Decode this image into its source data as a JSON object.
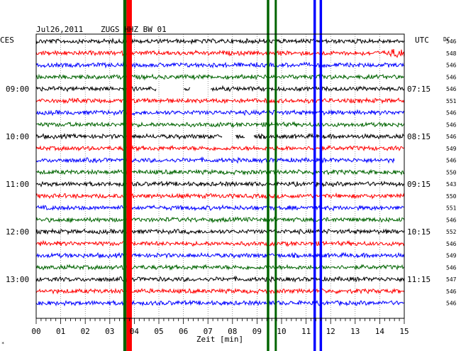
{
  "header": {
    "date": "Jul26,2011",
    "station": "ZUGS HHZ BW 01",
    "left_tz": "CES",
    "right_tz": "UTC",
    "dc_label": "DC"
  },
  "colors": {
    "trace_cycle": [
      "#000000",
      "#ff0000",
      "#0000ff",
      "#006400"
    ],
    "frame": "#000000",
    "grid": "#000000"
  },
  "chart_data": {
    "type": "line",
    "title": "Jul26,2011   ZUGS HHZ BW 01",
    "xlabel": "Zeit [min]",
    "ylabel": "",
    "x_range": [
      0,
      15
    ],
    "x_ticks": [
      "00",
      "01",
      "02",
      "03",
      "04",
      "05",
      "06",
      "07",
      "08",
      "09",
      "10",
      "11",
      "12",
      "13",
      "14",
      "15"
    ],
    "left_time_labels": [
      {
        "row": 4,
        "label": "09:00"
      },
      {
        "row": 8,
        "label": "10:00"
      },
      {
        "row": 12,
        "label": "11:00"
      },
      {
        "row": 16,
        "label": "12:00"
      },
      {
        "row": 20,
        "label": "13:00"
      }
    ],
    "right_time_labels": [
      {
        "row": 4,
        "label": "07:15"
      },
      {
        "row": 8,
        "label": "08:15"
      },
      {
        "row": 12,
        "label": "09:15"
      },
      {
        "row": 16,
        "label": "10:15"
      },
      {
        "row": 20,
        "label": "11:15"
      }
    ],
    "dc_offsets": [
      "546",
      "548",
      "546",
      "546",
      "546",
      "551",
      "546",
      "546",
      "546",
      "549",
      "546",
      "550",
      "543",
      "550",
      "551",
      "546",
      "552",
      "546",
      "549",
      "546",
      "547",
      "546",
      "546"
    ],
    "data_gaps": [
      {
        "row": 4,
        "from_min": 4.9,
        "to_min": 6.0
      },
      {
        "row": 4,
        "from_min": 6.3,
        "to_min": 7.1
      },
      {
        "row": 8,
        "from_min": 7.6,
        "to_min": 8.1
      },
      {
        "row": 8,
        "from_min": 8.5,
        "to_min": 8.85
      },
      {
        "row": 10,
        "from_min": 14.6,
        "to_min": 15.0
      }
    ],
    "events": [
      {
        "row": 1,
        "minute": 14.8,
        "amplitude": "burst"
      }
    ],
    "saturated_bands": [
      {
        "from_min": 3.55,
        "to_min": 3.68,
        "color": "#006400",
        "row_from": 0,
        "row_to": 22
      },
      {
        "from_min": 3.68,
        "to_min": 3.9,
        "color": "#ff0000",
        "row_from": 0,
        "row_to": 22
      },
      {
        "from_min": 9.4,
        "to_min": 9.5,
        "color": "#006400",
        "row_from": 0,
        "row_to": 22
      },
      {
        "from_min": 9.72,
        "to_min": 9.8,
        "color": "#006400",
        "row_from": 0,
        "row_to": 22
      },
      {
        "from_min": 11.3,
        "to_min": 11.4,
        "color": "#0000ff",
        "row_from": 0,
        "row_to": 22
      },
      {
        "from_min": 11.55,
        "to_min": 11.65,
        "color": "#0000ff",
        "row_from": 0,
        "row_to": 22
      }
    ],
    "grid": true
  }
}
